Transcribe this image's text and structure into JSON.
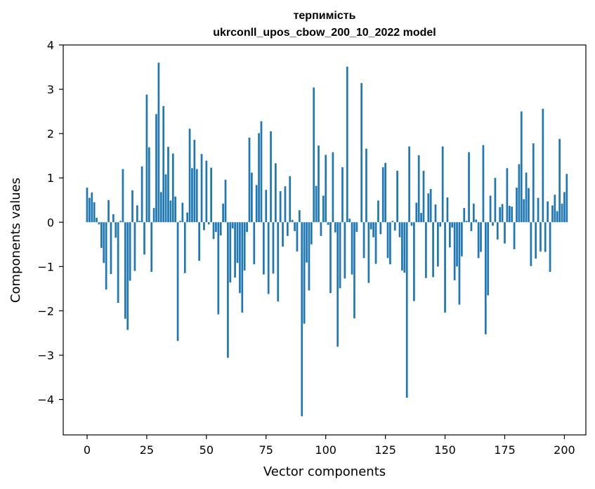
{
  "chart_data": {
    "type": "bar",
    "title": "терпимість",
    "subtitle": "ukrconll_upos_cbow_200_10_2022 model",
    "xlabel": "Vector components",
    "ylabel": "Components values",
    "xlim": [
      -10,
      209
    ],
    "ylim": [
      -4.8,
      4
    ],
    "xticks": [
      0,
      25,
      50,
      75,
      100,
      125,
      150,
      175,
      200
    ],
    "yticks": [
      -4,
      -3,
      -2,
      -1,
      0,
      1,
      2,
      3,
      4
    ],
    "ytick_labels": [
      "−4",
      "−3",
      "−2",
      "−1",
      "0",
      "1",
      "2",
      "3",
      "4"
    ],
    "bar_color": "#1f77b4",
    "grid": false,
    "values": [
      0.78,
      0.55,
      0.67,
      0.45,
      0.1,
      -0.05,
      -0.58,
      -0.92,
      -1.52,
      0.5,
      -1.17,
      0.18,
      -0.35,
      -1.82,
      0.03,
      1.2,
      -2.18,
      -2.43,
      -1.32,
      0.72,
      -1.1,
      0.38,
      0.03,
      1.26,
      -0.73,
      2.88,
      1.69,
      -1.12,
      0.32,
      2.44,
      3.6,
      0.68,
      2.62,
      1.08,
      1.7,
      0.49,
      1.55,
      0.58,
      -2.68,
      0.03,
      0.44,
      -1.15,
      0.22,
      2.11,
      1.22,
      1.86,
      1.2,
      -0.87,
      1.54,
      -0.18,
      1.39,
      -0.05,
      1.23,
      -0.38,
      -0.22,
      -2.08,
      -0.3,
      0.42,
      0.96,
      -3.06,
      -1.36,
      -0.14,
      -1.25,
      -0.92,
      -1.6,
      -2.04,
      -1.09,
      -0.22,
      1.91,
      1.12,
      -0.95,
      0.84,
      2.01,
      2.28,
      -1.18,
      0.73,
      -1.62,
      2.05,
      -1.16,
      1.33,
      -1.79,
      0.7,
      -0.55,
      0.81,
      -0.31,
      1.04,
      0.05,
      -0.2,
      -0.66,
      0.27,
      -4.38,
      -2.29,
      -0.91,
      -1.54,
      -0.5,
      3.04,
      0.82,
      1.73,
      -0.31,
      0.6,
      1.52,
      -0.06,
      -1.6,
      1.58,
      -0.23,
      -2.81,
      -1.49,
      1.24,
      -1.27,
      3.51,
      0.08,
      -1.18,
      -2.17,
      -0.22,
      0.0,
      3.14,
      -0.81,
      1.66,
      -1.37,
      -0.16,
      -0.34,
      -0.94,
      0.49,
      -0.27,
      1.24,
      1.34,
      -0.81,
      -0.95,
      0.03,
      -0.19,
      1.16,
      -0.34,
      -1.09,
      -1.14,
      -3.96,
      1.71,
      -0.08,
      -1.78,
      0.44,
      1.51,
      0.21,
      1.16,
      -1.26,
      0.65,
      0.75,
      -1.24,
      0.4,
      -1.0,
      -0.1,
      1.71,
      -2.04,
      0.56,
      -0.57,
      -0.12,
      -1.31,
      -1.0,
      -1.86,
      -0.77,
      0.32,
      0.03,
      1.58,
      -0.2,
      0.42,
      0.06,
      -0.81,
      -0.67,
      1.74,
      -2.53,
      -1.65,
      0.6,
      -0.08,
      1.0,
      -0.39,
      0.34,
      0.41,
      -0.48,
      1.22,
      0.37,
      0.35,
      -0.61,
      0.78,
      1.31,
      2.5,
      0.52,
      1.12,
      0.77,
      -0.99,
      1.78,
      -0.82,
      0.55,
      -0.66,
      2.56,
      -0.67,
      0.47,
      -1.12,
      0.38,
      0.62,
      0.25,
      1.88,
      0.42,
      0.68,
      1.09
    ]
  }
}
